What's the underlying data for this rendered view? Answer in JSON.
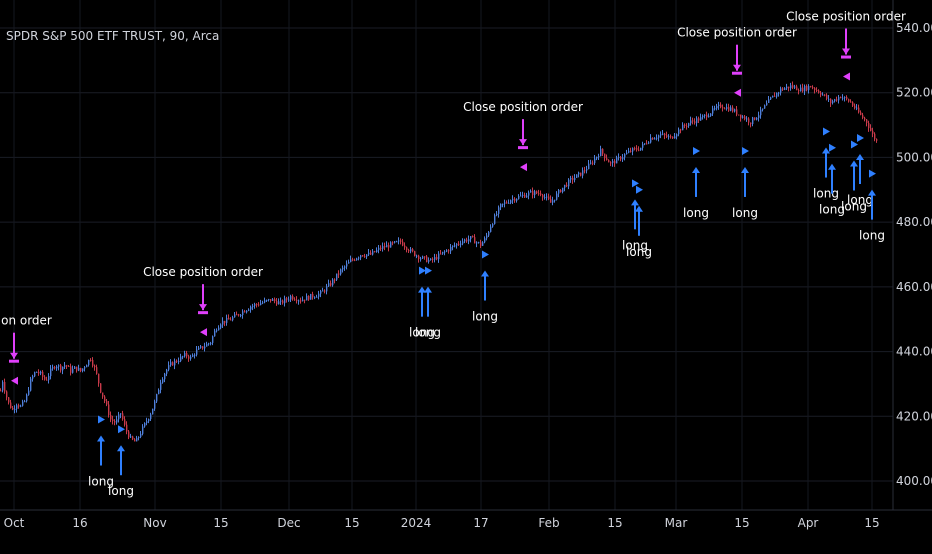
{
  "chart_data": {
    "type": "candlestick",
    "title": "SPDR S&P 500 ETF TRUST, 90, Arca",
    "y_ticks": [
      "540.00",
      "520.00",
      "500.00",
      "480.00",
      "460.00",
      "440.00",
      "420.00",
      "400.00"
    ],
    "ylim": [
      398,
      546
    ],
    "x_ticks": [
      "Oct",
      "16",
      "Nov",
      "15",
      "Dec",
      "15",
      "2024",
      "17",
      "Feb",
      "15",
      "Mar",
      "15",
      "Apr",
      "15"
    ],
    "grid": true,
    "close_series": [
      [
        0,
        428
      ],
      [
        2,
        431
      ],
      [
        5,
        427
      ],
      [
        8,
        424
      ],
      [
        12,
        422
      ],
      [
        16,
        424
      ],
      [
        20,
        423
      ],
      [
        25,
        425
      ],
      [
        30,
        431
      ],
      [
        35,
        434
      ],
      [
        40,
        433
      ],
      [
        45,
        431
      ],
      [
        50,
        434
      ],
      [
        55,
        436
      ],
      [
        60,
        435
      ],
      [
        65,
        436
      ],
      [
        70,
        434
      ],
      [
        75,
        435
      ],
      [
        80,
        434
      ],
      [
        85,
        436
      ],
      [
        90,
        438
      ],
      [
        95,
        434
      ],
      [
        100,
        428
      ],
      [
        105,
        424
      ],
      [
        110,
        419
      ],
      [
        115,
        418
      ],
      [
        120,
        421
      ],
      [
        125,
        416
      ],
      [
        130,
        413
      ],
      [
        135,
        412
      ],
      [
        140,
        415
      ],
      [
        145,
        418
      ],
      [
        150,
        421
      ],
      [
        155,
        425
      ],
      [
        160,
        431
      ],
      [
        165,
        434
      ],
      [
        170,
        436
      ],
      [
        175,
        437
      ],
      [
        180,
        438
      ],
      [
        185,
        439
      ],
      [
        190,
        438
      ],
      [
        195,
        440
      ],
      [
        200,
        441
      ],
      [
        205,
        442
      ],
      [
        210,
        443
      ],
      [
        215,
        447
      ],
      [
        220,
        449
      ],
      [
        230,
        450
      ],
      [
        240,
        452
      ],
      [
        250,
        454
      ],
      [
        260,
        455
      ],
      [
        270,
        456
      ],
      [
        280,
        455
      ],
      [
        290,
        457
      ],
      [
        300,
        456
      ],
      [
        310,
        457
      ],
      [
        320,
        458
      ],
      [
        330,
        461
      ],
      [
        340,
        465
      ],
      [
        350,
        468
      ],
      [
        360,
        470
      ],
      [
        370,
        470
      ],
      [
        380,
        472
      ],
      [
        390,
        473
      ],
      [
        400,
        474
      ],
      [
        410,
        471
      ],
      [
        420,
        469
      ],
      [
        430,
        468
      ],
      [
        440,
        470
      ],
      [
        450,
        472
      ],
      [
        460,
        474
      ],
      [
        470,
        475
      ],
      [
        480,
        473
      ],
      [
        485,
        475
      ],
      [
        490,
        479
      ],
      [
        495,
        482
      ],
      [
        500,
        485
      ],
      [
        510,
        487
      ],
      [
        520,
        488
      ],
      [
        530,
        489
      ],
      [
        540,
        489
      ],
      [
        550,
        486
      ],
      [
        560,
        490
      ],
      [
        570,
        493
      ],
      [
        580,
        495
      ],
      [
        590,
        498
      ],
      [
        600,
        502
      ],
      [
        610,
        498
      ],
      [
        620,
        500
      ],
      [
        630,
        502
      ],
      [
        640,
        503
      ],
      [
        650,
        506
      ],
      [
        660,
        507
      ],
      [
        670,
        506
      ],
      [
        680,
        509
      ],
      [
        690,
        511
      ],
      [
        700,
        512
      ],
      [
        710,
        514
      ],
      [
        720,
        516
      ],
      [
        730,
        515
      ],
      [
        740,
        513
      ],
      [
        750,
        511
      ],
      [
        760,
        514
      ],
      [
        770,
        518
      ],
      [
        780,
        521
      ],
      [
        790,
        522
      ],
      [
        800,
        521
      ],
      [
        810,
        522
      ],
      [
        820,
        520
      ],
      [
        830,
        517
      ],
      [
        840,
        519
      ],
      [
        850,
        517
      ],
      [
        860,
        513
      ],
      [
        866,
        511
      ],
      [
        872,
        507
      ],
      [
        876,
        505
      ]
    ],
    "close_markers": [
      {
        "x": 14,
        "y": 431,
        "label": "osition order"
      },
      {
        "x": 203,
        "y": 446,
        "label": "Close position order"
      },
      {
        "x": 523,
        "y": 497,
        "label": "Close position order"
      },
      {
        "x": 737,
        "y": 520,
        "label": "Close position order"
      },
      {
        "x": 846,
        "y": 525,
        "label": "Close position order"
      }
    ],
    "long_signals": [
      {
        "x": 101,
        "y": 419,
        "label": "long"
      },
      {
        "x": 121,
        "y": 416,
        "label": "long"
      },
      {
        "x": 422,
        "y": 465,
        "label": "long"
      },
      {
        "x": 428,
        "y": 465,
        "label": "long"
      },
      {
        "x": 485,
        "y": 470,
        "label": "long"
      },
      {
        "x": 635,
        "y": 492,
        "label": "long"
      },
      {
        "x": 639,
        "y": 490,
        "label": "long"
      },
      {
        "x": 696,
        "y": 502,
        "label": "long"
      },
      {
        "x": 745,
        "y": 502,
        "label": "long"
      },
      {
        "x": 826,
        "y": 508,
        "label": "long"
      },
      {
        "x": 832,
        "y": 503,
        "label": "long"
      },
      {
        "x": 854,
        "y": 504,
        "label": "long"
      },
      {
        "x": 860,
        "y": 506,
        "label": "long"
      },
      {
        "x": 872,
        "y": 495,
        "label": "long"
      }
    ]
  }
}
